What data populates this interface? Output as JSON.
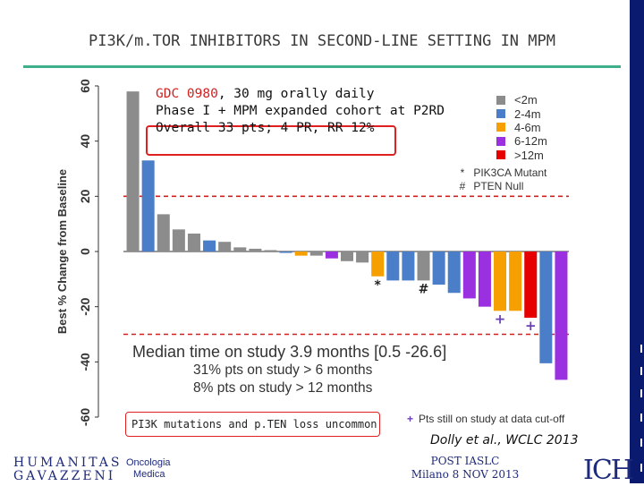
{
  "slide": {
    "title": "PI3K/m.TOR INHIBITORS IN SECOND-LINE SETTING IN MPM"
  },
  "study_box": {
    "line1_drug": "GDC 0980",
    "line1_rest": ", 30 mg orally daily",
    "line2": "Phase I + MPM expanded cohort at P2RD",
    "line3": "Overall 33 pts; 4 PR, RR 12%"
  },
  "legend": {
    "durations": [
      {
        "label": "<2m",
        "color": "#8c8c8c"
      },
      {
        "label": "2-4m",
        "color": "#4a7ec9"
      },
      {
        "label": "4-6m",
        "color": "#f5a000"
      },
      {
        "label": "6-12m",
        "color": "#9b30e0"
      },
      {
        "label": ">12m",
        "color": "#e60000"
      }
    ],
    "markers": [
      {
        "symbol": "*",
        "label": "PIK3CA Mutant"
      },
      {
        "symbol": "#",
        "label": "PTEN Null"
      }
    ],
    "cutoff_symbol": "+",
    "cutoff_label": "Pts still on study at data cut-off"
  },
  "summary": {
    "main": "Median time on study 3.9 months [0.5 -26.6]",
    "sub1": "31% pts on study > 6 months",
    "sub2": "8% pts on study > 12 months"
  },
  "note": "PI3K mutations and p.TEN loss uncommon",
  "citation": "Dolly et al., WCLC 2013",
  "footer": {
    "logo_line1": "HUMANITAS",
    "logo_line2": "GAVAZZENI",
    "dept_line1": "Oncologia",
    "dept_line2": "Medica",
    "event_line1": "POST IASLC",
    "event_line2": "Milano 8 NOV 2013",
    "logo_right": "ICH"
  },
  "chart_data": {
    "type": "bar",
    "title": "",
    "xlabel": "",
    "ylabel": "Best % Change from Baseline",
    "ylim": [
      -60,
      60
    ],
    "yticks": [
      60,
      40,
      20,
      0,
      -20,
      -40,
      -60
    ],
    "reference_lines": [
      20,
      -30
    ],
    "bars": [
      {
        "value": 58,
        "group": "<2m"
      },
      {
        "value": 33,
        "group": "2-4m"
      },
      {
        "value": 13.5,
        "group": "<2m"
      },
      {
        "value": 8,
        "group": "<2m"
      },
      {
        "value": 6.5,
        "group": "<2m"
      },
      {
        "value": 4,
        "group": "2-4m"
      },
      {
        "value": 3.5,
        "group": "<2m"
      },
      {
        "value": 1.5,
        "group": "<2m"
      },
      {
        "value": 1,
        "group": "<2m"
      },
      {
        "value": 0.5,
        "group": "<2m"
      },
      {
        "value": -0.5,
        "group": "2-4m"
      },
      {
        "value": -1.5,
        "group": "4-6m"
      },
      {
        "value": -1.5,
        "group": "<2m"
      },
      {
        "value": -2.5,
        "group": "6-12m"
      },
      {
        "value": -3.5,
        "group": "<2m"
      },
      {
        "value": -4,
        "group": "<2m"
      },
      {
        "value": -9,
        "group": "4-6m",
        "marker": "*"
      },
      {
        "value": -10.5,
        "group": "2-4m"
      },
      {
        "value": -10.5,
        "group": "2-4m"
      },
      {
        "value": -10.5,
        "group": "<2m",
        "marker": "#"
      },
      {
        "value": -12,
        "group": "2-4m"
      },
      {
        "value": -15,
        "group": "2-4m"
      },
      {
        "value": -17,
        "group": "6-12m"
      },
      {
        "value": -20,
        "group": "6-12m"
      },
      {
        "value": -21.5,
        "group": "4-6m",
        "marker": "+"
      },
      {
        "value": -21.5,
        "group": "4-6m"
      },
      {
        "value": -24,
        "group": ">12m",
        "marker": "+"
      },
      {
        "value": -40.5,
        "group": "2-4m"
      },
      {
        "value": -46.5,
        "group": "6-12m"
      }
    ]
  }
}
